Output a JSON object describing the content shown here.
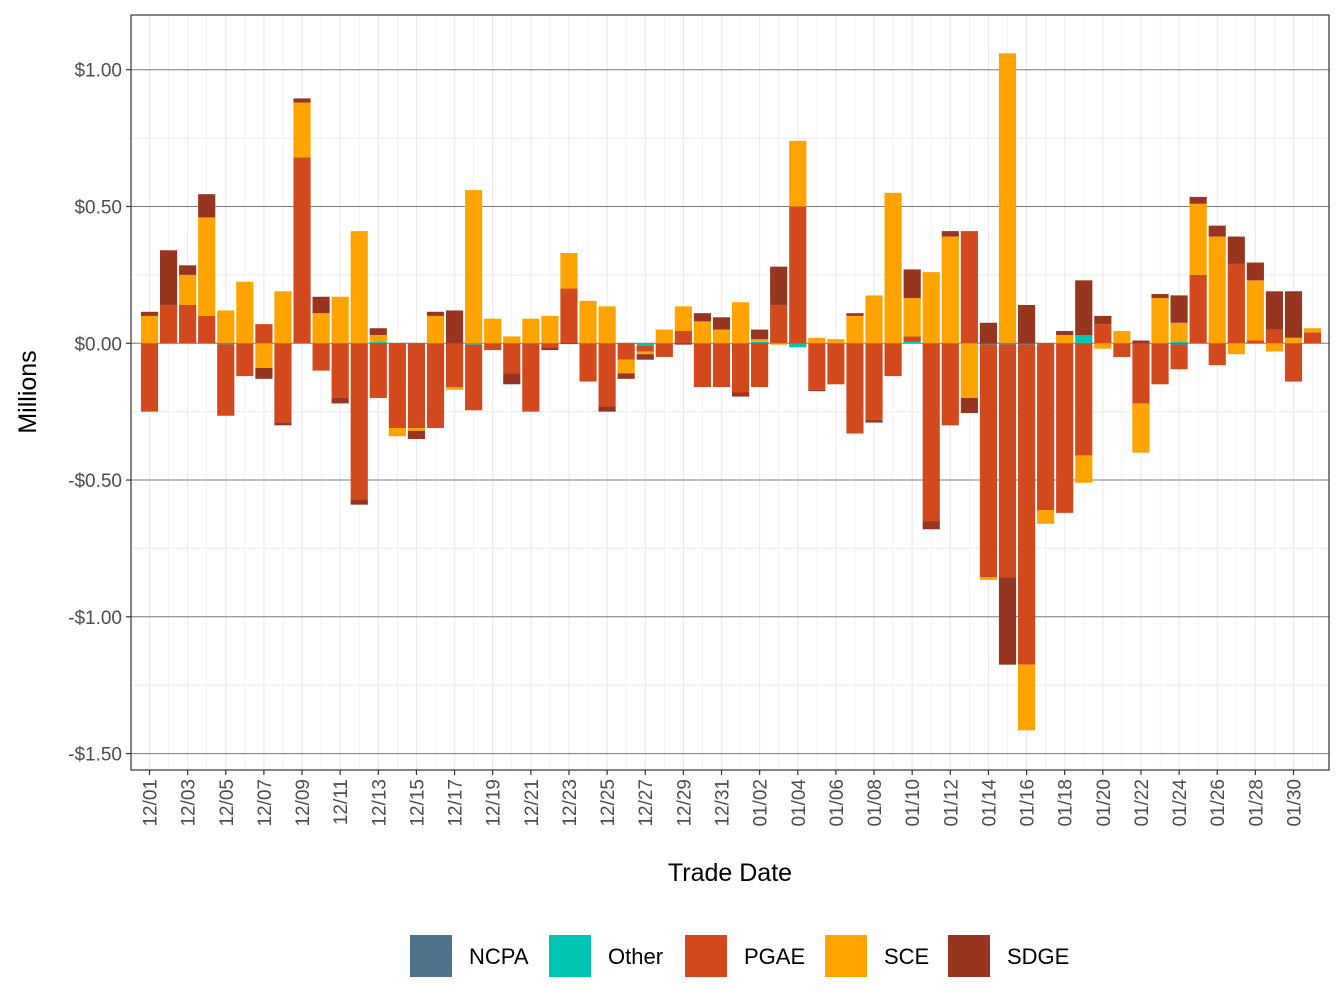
{
  "chart_data": {
    "type": "bar",
    "stacked": true,
    "title": "",
    "xlabel": "Trade Date",
    "ylabel": "Millions",
    "ylim": [
      -1.56,
      1.2
    ],
    "y_ticks": [
      1.0,
      0.5,
      0.0,
      -0.5,
      -1.0,
      -1.5
    ],
    "y_tick_labels": [
      "$1.00",
      "$0.50",
      "$0.00",
      "-$0.50",
      "-$1.00",
      "-$1.50"
    ],
    "grid": true,
    "legend_position": "bottom",
    "categories": [
      "12/01",
      "12/02",
      "12/03",
      "12/04",
      "12/05",
      "12/06",
      "12/07",
      "12/08",
      "12/09",
      "12/10",
      "12/11",
      "12/12",
      "12/13",
      "12/14",
      "12/15",
      "12/16",
      "12/17",
      "12/18",
      "12/19",
      "12/20",
      "12/21",
      "12/22",
      "12/23",
      "12/24",
      "12/25",
      "12/26",
      "12/27",
      "12/28",
      "12/29",
      "12/30",
      "12/31",
      "01/01",
      "01/02",
      "01/03",
      "01/04",
      "01/05",
      "01/06",
      "01/07",
      "01/08",
      "01/09",
      "01/10",
      "01/11",
      "01/12",
      "01/13",
      "01/14",
      "01/15",
      "01/16",
      "01/17",
      "01/18",
      "01/19",
      "01/20",
      "01/21",
      "01/22",
      "01/23",
      "01/24",
      "01/25",
      "01/26",
      "01/27",
      "01/28",
      "01/29",
      "01/30",
      "01/31"
    ],
    "x_tick_labels": [
      "12/01",
      "12/03",
      "12/05",
      "12/07",
      "12/09",
      "12/11",
      "12/13",
      "12/15",
      "12/17",
      "12/19",
      "12/21",
      "12/23",
      "12/25",
      "12/27",
      "12/29",
      "12/31",
      "01/02",
      "01/04",
      "01/06",
      "01/08",
      "01/10",
      "01/12",
      "01/14",
      "01/16",
      "01/18",
      "01/20",
      "01/22",
      "01/24",
      "01/26",
      "01/28",
      "01/30"
    ],
    "series": [
      {
        "name": "NCPA",
        "color": "#4e7389",
        "values": [
          0,
          0,
          0,
          0,
          -0.005,
          0,
          0,
          0,
          0,
          0,
          0,
          0,
          0,
          0,
          0,
          0,
          0,
          0,
          0,
          0,
          0,
          0,
          0,
          0,
          0,
          0,
          0,
          0,
          0,
          0,
          0,
          0,
          0,
          0,
          0,
          0,
          0,
          0,
          0,
          0,
          0,
          0,
          0,
          0,
          -0.005,
          -0.005,
          -0.005,
          0,
          0,
          0,
          0,
          0,
          0,
          0,
          -0.005,
          0,
          0,
          0,
          0,
          0,
          0,
          0
        ]
      },
      {
        "name": "Other",
        "color": "#00c4b3",
        "values": [
          0,
          0,
          0,
          0,
          0,
          0,
          0,
          0,
          0,
          0,
          0,
          0,
          0.005,
          0,
          0,
          0,
          0,
          -0.005,
          0,
          0,
          0,
          0,
          0,
          0,
          0,
          0,
          -0.01,
          0,
          0,
          0,
          0,
          0,
          0.005,
          0,
          -0.015,
          0,
          0,
          0,
          0,
          0,
          0.005,
          0,
          0,
          0,
          0,
          0,
          0,
          0,
          0,
          0.03,
          0,
          0,
          0,
          0,
          0.005,
          0,
          0,
          0,
          0,
          0,
          0,
          0
        ]
      },
      {
        "name": "PGAE",
        "color": "#d2491e",
        "values": [
          -0.25,
          0.14,
          0.14,
          0.1,
          -0.26,
          -0.12,
          0.07,
          -0.29,
          0.68,
          -0.1,
          -0.2,
          -0.57,
          -0.2,
          -0.31,
          -0.31,
          -0.31,
          -0.16,
          -0.24,
          -0.025,
          -0.11,
          -0.25,
          -0.015,
          0.2,
          -0.14,
          -0.23,
          -0.06,
          -0.02,
          -0.05,
          0.045,
          -0.16,
          -0.16,
          -0.18,
          -0.16,
          0.14,
          0.5,
          -0.17,
          -0.15,
          -0.33,
          -0.28,
          -0.12,
          0.02,
          -0.65,
          -0.3,
          0.41,
          -0.85,
          -0.85,
          -1.17,
          -0.61,
          -0.62,
          -0.41,
          0.07,
          -0.05,
          -0.22,
          -0.15,
          -0.09,
          0.25,
          -0.08,
          0.29,
          0.01,
          0.05,
          -0.14,
          0.04
        ]
      },
      {
        "name": "SCE",
        "color": "#ffa300",
        "values": [
          0.1,
          0,
          0.11,
          0.36,
          0.12,
          0.225,
          -0.09,
          0.19,
          0.2,
          0.11,
          0.17,
          0.41,
          0.025,
          -0.03,
          -0.01,
          0.1,
          -0.01,
          0.56,
          0.09,
          0.025,
          0.09,
          0.1,
          0.13,
          0.155,
          0.135,
          -0.05,
          -0.01,
          0.05,
          0.09,
          0.08,
          0.05,
          0.15,
          0.01,
          -0.005,
          0.24,
          0.02,
          0.015,
          0.1,
          0.175,
          0.55,
          0.14,
          0.26,
          0.39,
          -0.2,
          -0.01,
          1.06,
          -0.24,
          -0.05,
          0.03,
          -0.1,
          -0.02,
          0.045,
          -0.18,
          0.165,
          0.07,
          0.26,
          0.39,
          -0.04,
          0.22,
          -0.03,
          0.02,
          0.015
        ]
      },
      {
        "name": "SDGE",
        "color": "#963520",
        "values": [
          0.015,
          0.2,
          0.035,
          0.085,
          0,
          0,
          -0.04,
          -0.01,
          0.015,
          0.06,
          -0.02,
          -0.02,
          0.025,
          0,
          -0.03,
          0.015,
          0.12,
          0,
          0,
          -0.04,
          0,
          -0.01,
          -0.003,
          0,
          -0.02,
          -0.02,
          -0.02,
          0,
          -0.005,
          0.03,
          0.045,
          -0.015,
          0.035,
          0.14,
          0,
          -0.005,
          0,
          0.01,
          -0.01,
          0,
          0.105,
          -0.03,
          0.02,
          -0.055,
          0.075,
          -0.32,
          0.14,
          0,
          0.015,
          0.2,
          0.03,
          0,
          0.01,
          0.015,
          0.1,
          0.025,
          0.04,
          0.1,
          0.065,
          0.14,
          0.17,
          0
        ]
      }
    ]
  }
}
